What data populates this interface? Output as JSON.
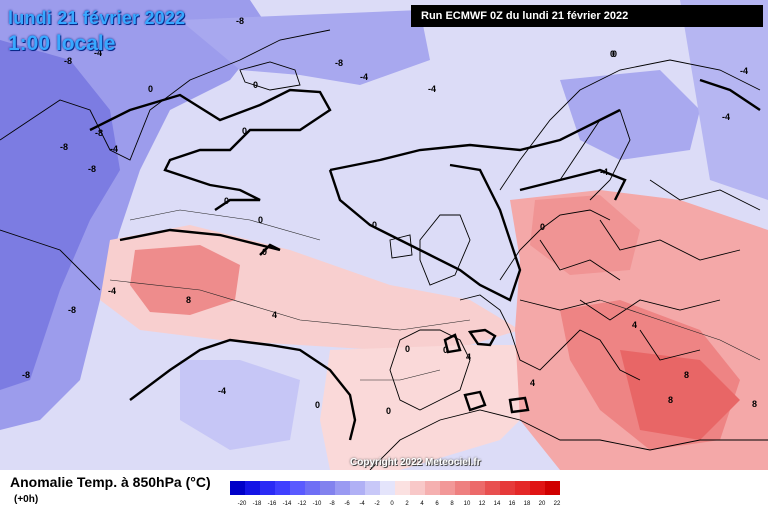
{
  "header": {
    "date": "lundi 21 février 2022",
    "local_time": "1:00 locale",
    "run_info": "Run ECMWF 0Z du lundi 21 février 2022"
  },
  "map": {
    "copyright": "Copyright 2022 Meteociel.fr",
    "contour_labels": [
      "-8",
      "-8",
      "-4",
      "-8",
      "-4",
      "-4",
      "0",
      "0",
      "0",
      "0",
      "0",
      "0",
      "0",
      "0",
      "-4",
      "-8",
      "-8",
      "-8",
      "-4",
      "-4",
      "-8",
      "-8",
      "8",
      "4",
      "0",
      "0",
      "-4",
      "0",
      "4",
      "0",
      "4",
      "8",
      "8",
      "8",
      "4",
      "0",
      "-4",
      "-4",
      "0"
    ]
  },
  "legend": {
    "title": "Anomalie Temp. à 850hPa (°C)",
    "subtitle": "(+0h)",
    "ticks": [
      "-20",
      "-18",
      "-16",
      "-14",
      "-12",
      "-10",
      "-8",
      "-6",
      "-4",
      "-2",
      "0",
      "2",
      "4",
      "6",
      "8",
      "10",
      "12",
      "14",
      "16",
      "18",
      "20",
      "22"
    ],
    "colors": [
      "#0000c8",
      "#1414e6",
      "#2b2bf5",
      "#4040ff",
      "#5a5aff",
      "#6f6ff5",
      "#8282ee",
      "#9a9af2",
      "#b0b0f5",
      "#c8c8f8",
      "#e4e4fb",
      "#fbe1e1",
      "#f8c8c8",
      "#f5b0b0",
      "#f29898",
      "#ee8080",
      "#ec6a6a",
      "#e85050",
      "#e63a3a",
      "#e42828",
      "#e01414",
      "#d00000"
    ]
  }
}
